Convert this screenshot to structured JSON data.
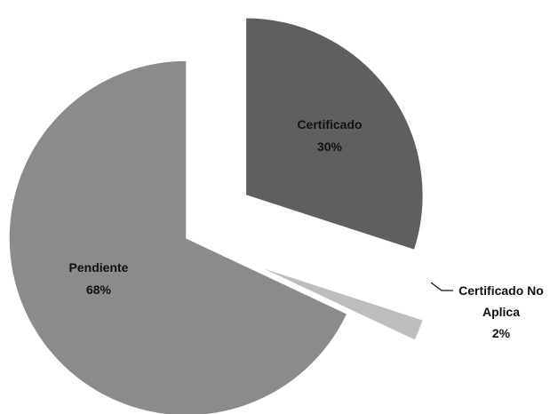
{
  "chart_data": {
    "type": "pie",
    "title": "",
    "slices": [
      {
        "name": "Certificado",
        "value": 30,
        "label": "Certificado",
        "pct_label": "30%",
        "color": "#5f5f5f",
        "exploded": true
      },
      {
        "name": "Certificado No Aplica",
        "value": 2,
        "label_lines": [
          "Certificado No",
          "Aplica"
        ],
        "pct_label": "2%",
        "color": "#bdbdbd",
        "exploded": true
      },
      {
        "name": "Pendiente",
        "value": 68,
        "label": "Pendiente",
        "pct_label": "68%",
        "color": "#8b8b8b",
        "exploded": false
      }
    ],
    "legend": "none",
    "start_angle": "12 o'clock",
    "direction": "clockwise"
  }
}
